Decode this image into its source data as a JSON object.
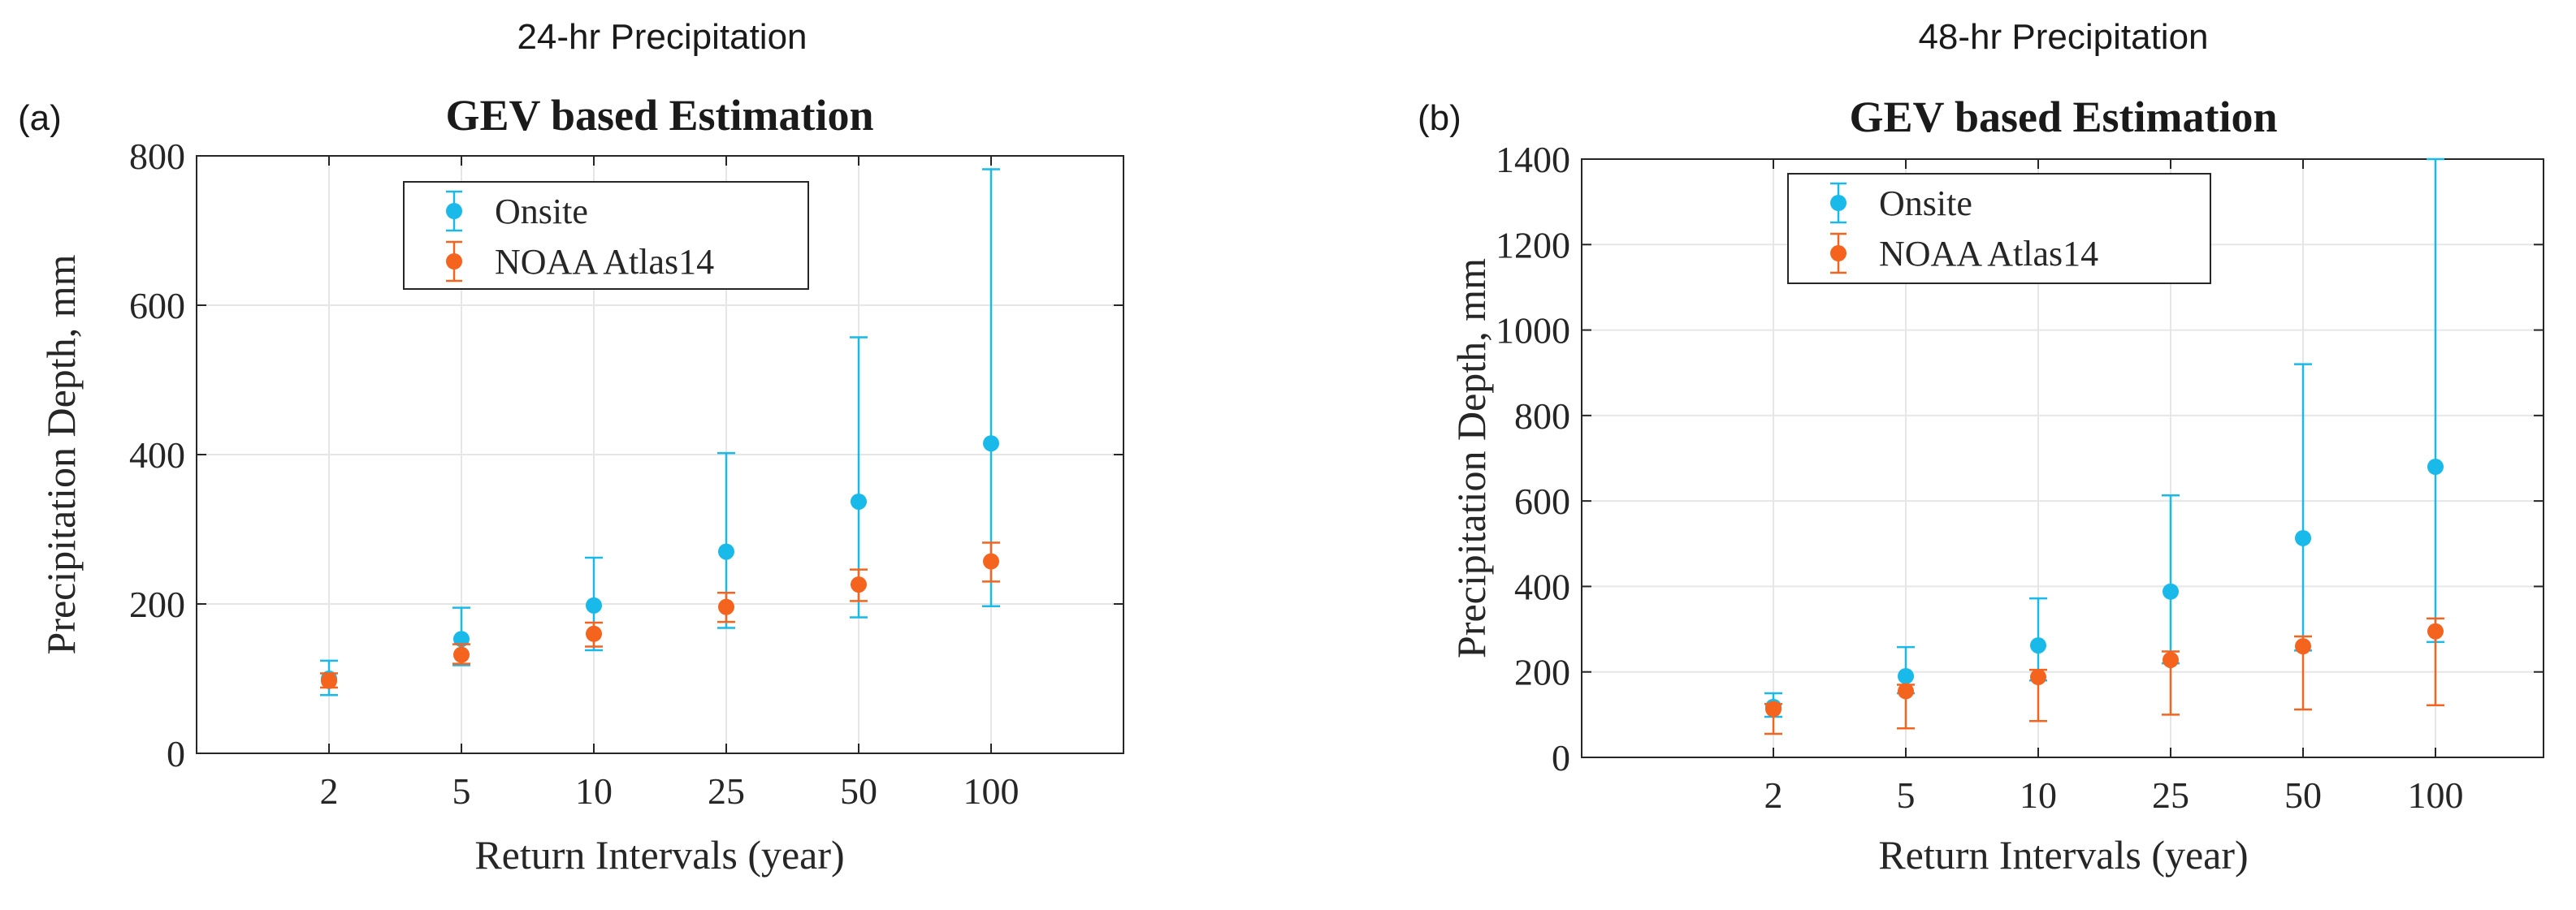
{
  "colors": {
    "onsite": "#19b9e9",
    "noaa": "#f4641f",
    "grid": "#e6e6e6",
    "axis": "#262626"
  },
  "chart_data": [
    {
      "type": "scatter",
      "panel_heading": "24-hr Precipitation",
      "panel_label": "(a)",
      "title": "GEV based Estimation",
      "xlabel": "Return Intervals (year)",
      "ylabel": "Precipitation Depth, mm",
      "categories": [
        "2",
        "5",
        "10",
        "25",
        "50",
        "100"
      ],
      "ylim": [
        0,
        800
      ],
      "yticks": [
        0,
        200,
        400,
        600,
        800
      ],
      "grid": true,
      "legend_position": "top-left",
      "series": [
        {
          "name": "Onsite",
          "values": [
            100,
            153,
            198,
            270,
            337,
            415
          ],
          "lower": [
            78,
            118,
            138,
            168,
            182,
            197
          ],
          "upper": [
            124,
            195,
            262,
            402,
            557,
            782
          ]
        },
        {
          "name": "NOAA Atlas14",
          "values": [
            97,
            132,
            160,
            196,
            226,
            257
          ],
          "lower": [
            88,
            120,
            143,
            176,
            204,
            230
          ],
          "upper": [
            107,
            146,
            175,
            215,
            246,
            282
          ]
        }
      ]
    },
    {
      "type": "scatter",
      "panel_heading": "48-hr Precipitation",
      "panel_label": "(b)",
      "title": "GEV based Estimation",
      "xlabel": "Return Intervals (year)",
      "ylabel": "Precipitation Depth, mm",
      "categories": [
        "2",
        "5",
        "10",
        "25",
        "50",
        "100"
      ],
      "ylim": [
        0,
        1400
      ],
      "yticks": [
        0,
        200,
        400,
        600,
        800,
        1000,
        1200,
        1400
      ],
      "grid": true,
      "legend_position": "top-left",
      "series": [
        {
          "name": "Onsite",
          "values": [
            118,
            190,
            262,
            388,
            513,
            680
          ],
          "lower": [
            95,
            150,
            180,
            220,
            250,
            270
          ],
          "upper": [
            150,
            258,
            372,
            613,
            920,
            1400
          ]
        },
        {
          "name": "NOAA Atlas14",
          "values": [
            113,
            155,
            188,
            228,
            260,
            295
          ],
          "lower": [
            55,
            68,
            85,
            100,
            112,
            122
          ],
          "upper": [
            125,
            170,
            205,
            248,
            283,
            325
          ]
        }
      ]
    }
  ]
}
